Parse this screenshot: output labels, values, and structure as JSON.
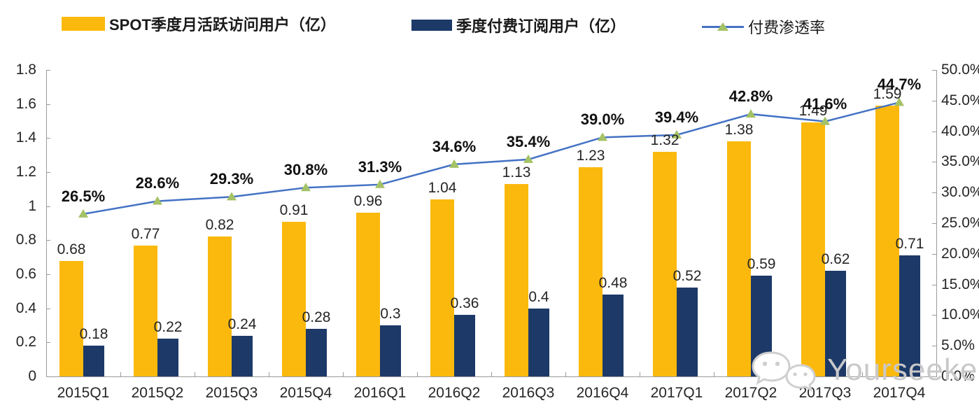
{
  "legend": {
    "items": [
      {
        "label": "SPOT季度月活跃访问用户（亿）",
        "type": "bar",
        "color": "#FBB90D"
      },
      {
        "label": "季度付费订阅用户（亿）",
        "type": "bar",
        "color": "#1C3968"
      },
      {
        "label": "付费渗透率",
        "type": "line",
        "line_color": "#4472C4",
        "marker_color": "#A4C266"
      }
    ]
  },
  "watermark": {
    "text": "Yourseeker",
    "icon": "wechat-icon",
    "color": "#c9c9c9"
  },
  "colors": {
    "mau_bar": "#FBB90D",
    "subs_bar": "#1C3968",
    "line": "#4472C4",
    "marker": "#A4C266",
    "axis": "#9a9a9a",
    "text": "#262626"
  },
  "chart_data": {
    "type": "bar",
    "subtype": "combo-dual-axis",
    "categories": [
      "2015Q1",
      "2015Q2",
      "2015Q3",
      "2015Q4",
      "2016Q1",
      "2016Q2",
      "2016Q3",
      "2016Q4",
      "2017Q1",
      "2017Q2",
      "2017Q3",
      "2017Q4"
    ],
    "series": [
      {
        "name": "SPOT季度月活跃访问用户（亿）",
        "type": "bar",
        "axis": "left",
        "color": "#FBB90D",
        "values": [
          0.68,
          0.77,
          0.82,
          0.91,
          0.96,
          1.04,
          1.13,
          1.23,
          1.32,
          1.38,
          1.49,
          1.59
        ],
        "labels": [
          "0.68",
          "0.77",
          "0.82",
          "0.91",
          "0.96",
          "1.04",
          "1.13",
          "1.23",
          "1.32",
          "1.38",
          "1.49",
          "1.59"
        ]
      },
      {
        "name": "季度付费订阅用户（亿）",
        "type": "bar",
        "axis": "left",
        "color": "#1C3968",
        "values": [
          0.18,
          0.22,
          0.24,
          0.28,
          0.3,
          0.36,
          0.4,
          0.48,
          0.52,
          0.59,
          0.62,
          0.71
        ],
        "labels": [
          "0.18",
          "0.22",
          "0.24",
          "0.28",
          "0.3",
          "0.36",
          "0.4",
          "0.48",
          "0.52",
          "0.59",
          "0.62",
          "0.71"
        ]
      },
      {
        "name": "付费渗透率",
        "type": "line",
        "axis": "right",
        "color": "#4472C4",
        "marker": "triangle",
        "marker_color": "#A4C266",
        "values": [
          26.5,
          28.6,
          29.3,
          30.8,
          31.3,
          34.6,
          35.4,
          39.0,
          39.4,
          42.8,
          41.6,
          44.7
        ],
        "labels": [
          "26.5%",
          "28.6%",
          "29.3%",
          "30.8%",
          "31.3%",
          "34.6%",
          "35.4%",
          "39.0%",
          "39.4%",
          "42.8%",
          "41.6%",
          "44.7%"
        ]
      }
    ],
    "left_axis": {
      "min": 0,
      "max": 1.8,
      "step": 0.2,
      "ticks": [
        "0",
        "0.2",
        "0.4",
        "0.6",
        "0.8",
        "1",
        "1.2",
        "1.4",
        "1.6",
        "1.8"
      ]
    },
    "right_axis": {
      "min": 0,
      "max": 50,
      "step": 5,
      "ticks": [
        "0.0%",
        "5.0%",
        "10.0%",
        "15.0%",
        "20.0%",
        "25.0%",
        "30.0%",
        "35.0%",
        "40.0%",
        "45.0%",
        "50.0%"
      ]
    },
    "grid": false,
    "legend_position": "top"
  }
}
